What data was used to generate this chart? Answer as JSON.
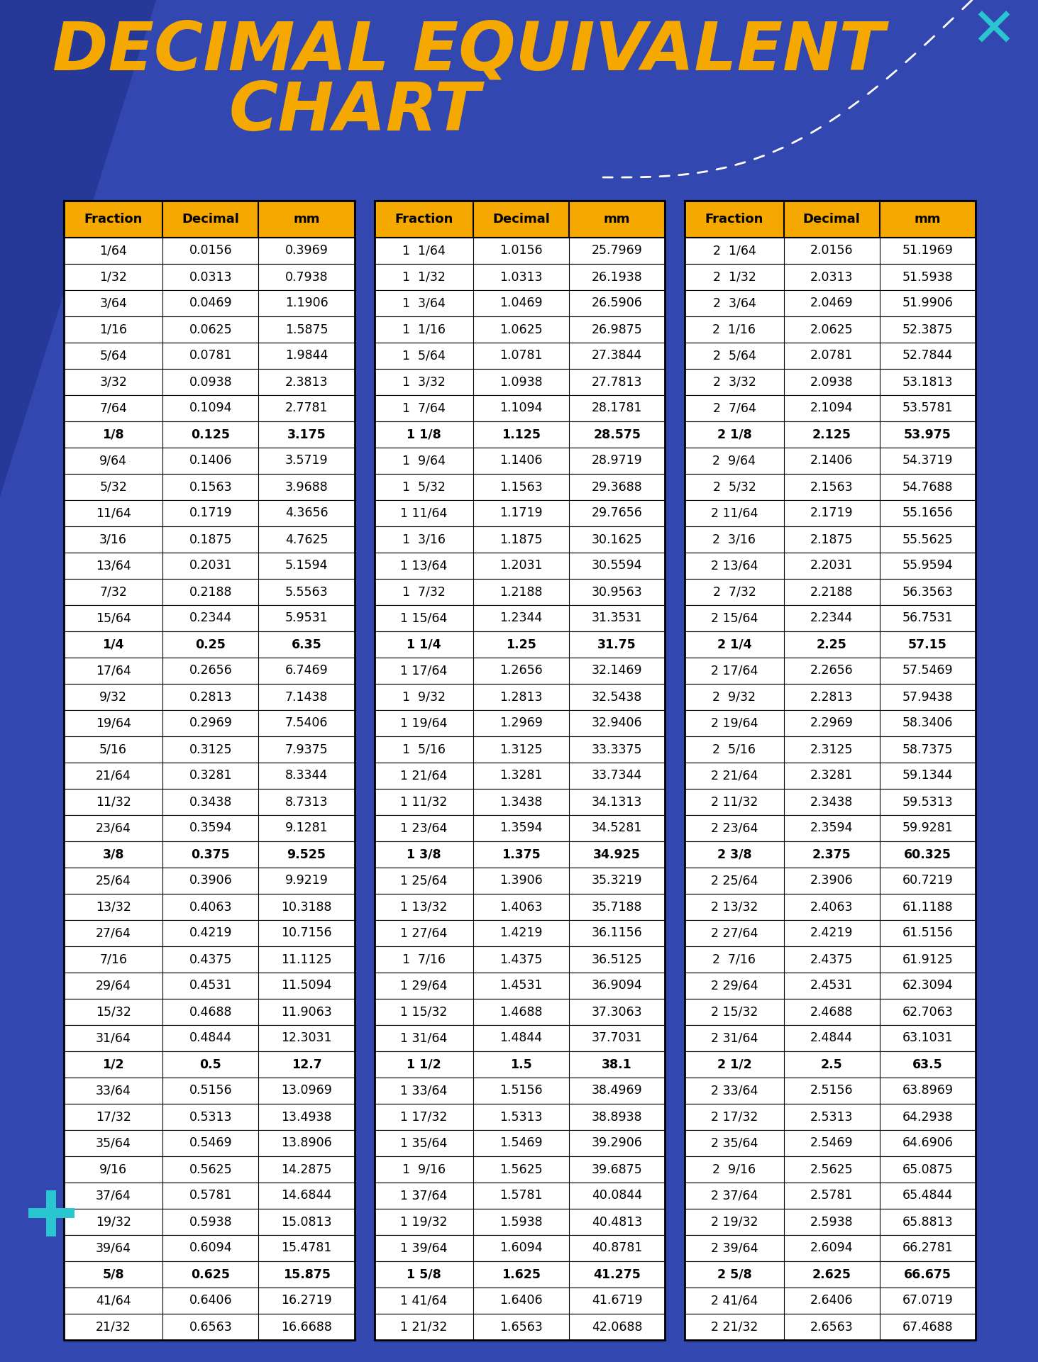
{
  "title_line1": "DECIMAL EQUIVALENT",
  "title_line2": "CHART",
  "bg_color": "#3347B0",
  "header_bg": "#F5A800",
  "header_text_color": "#000000",
  "title_color": "#F5A800",
  "cell_text_color": "#000000",
  "col_headers": [
    "Fraction",
    "Decimal",
    "mm"
  ],
  "rows": [
    [
      "1/64",
      "0.0156",
      "0.3969",
      "1  1/64",
      "1.0156",
      "25.7969",
      "2  1/64",
      "2.0156",
      "51.1969"
    ],
    [
      "1/32",
      "0.0313",
      "0.7938",
      "1  1/32",
      "1.0313",
      "26.1938",
      "2  1/32",
      "2.0313",
      "51.5938"
    ],
    [
      "3/64",
      "0.0469",
      "1.1906",
      "1  3/64",
      "1.0469",
      "26.5906",
      "2  3/64",
      "2.0469",
      "51.9906"
    ],
    [
      "1/16",
      "0.0625",
      "1.5875",
      "1  1/16",
      "1.0625",
      "26.9875",
      "2  1/16",
      "2.0625",
      "52.3875"
    ],
    [
      "5/64",
      "0.0781",
      "1.9844",
      "1  5/64",
      "1.0781",
      "27.3844",
      "2  5/64",
      "2.0781",
      "52.7844"
    ],
    [
      "3/32",
      "0.0938",
      "2.3813",
      "1  3/32",
      "1.0938",
      "27.7813",
      "2  3/32",
      "2.0938",
      "53.1813"
    ],
    [
      "7/64",
      "0.1094",
      "2.7781",
      "1  7/64",
      "1.1094",
      "28.1781",
      "2  7/64",
      "2.1094",
      "53.5781"
    ],
    [
      "1/8",
      "0.125",
      "3.175",
      "1 1/8",
      "1.125",
      "28.575",
      "2 1/8",
      "2.125",
      "53.975"
    ],
    [
      "9/64",
      "0.1406",
      "3.5719",
      "1  9/64",
      "1.1406",
      "28.9719",
      "2  9/64",
      "2.1406",
      "54.3719"
    ],
    [
      "5/32",
      "0.1563",
      "3.9688",
      "1  5/32",
      "1.1563",
      "29.3688",
      "2  5/32",
      "2.1563",
      "54.7688"
    ],
    [
      "11/64",
      "0.1719",
      "4.3656",
      "1 11/64",
      "1.1719",
      "29.7656",
      "2 11/64",
      "2.1719",
      "55.1656"
    ],
    [
      "3/16",
      "0.1875",
      "4.7625",
      "1  3/16",
      "1.1875",
      "30.1625",
      "2  3/16",
      "2.1875",
      "55.5625"
    ],
    [
      "13/64",
      "0.2031",
      "5.1594",
      "1 13/64",
      "1.2031",
      "30.5594",
      "2 13/64",
      "2.2031",
      "55.9594"
    ],
    [
      "7/32",
      "0.2188",
      "5.5563",
      "1  7/32",
      "1.2188",
      "30.9563",
      "2  7/32",
      "2.2188",
      "56.3563"
    ],
    [
      "15/64",
      "0.2344",
      "5.9531",
      "1 15/64",
      "1.2344",
      "31.3531",
      "2 15/64",
      "2.2344",
      "56.7531"
    ],
    [
      "1/4",
      "0.25",
      "6.35",
      "1 1/4",
      "1.25",
      "31.75",
      "2 1/4",
      "2.25",
      "57.15"
    ],
    [
      "17/64",
      "0.2656",
      "6.7469",
      "1 17/64",
      "1.2656",
      "32.1469",
      "2 17/64",
      "2.2656",
      "57.5469"
    ],
    [
      "9/32",
      "0.2813",
      "7.1438",
      "1  9/32",
      "1.2813",
      "32.5438",
      "2  9/32",
      "2.2813",
      "57.9438"
    ],
    [
      "19/64",
      "0.2969",
      "7.5406",
      "1 19/64",
      "1.2969",
      "32.9406",
      "2 19/64",
      "2.2969",
      "58.3406"
    ],
    [
      "5/16",
      "0.3125",
      "7.9375",
      "1  5/16",
      "1.3125",
      "33.3375",
      "2  5/16",
      "2.3125",
      "58.7375"
    ],
    [
      "21/64",
      "0.3281",
      "8.3344",
      "1 21/64",
      "1.3281",
      "33.7344",
      "2 21/64",
      "2.3281",
      "59.1344"
    ],
    [
      "11/32",
      "0.3438",
      "8.7313",
      "1 11/32",
      "1.3438",
      "34.1313",
      "2 11/32",
      "2.3438",
      "59.5313"
    ],
    [
      "23/64",
      "0.3594",
      "9.1281",
      "1 23/64",
      "1.3594",
      "34.5281",
      "2 23/64",
      "2.3594",
      "59.9281"
    ],
    [
      "3/8",
      "0.375",
      "9.525",
      "1 3/8",
      "1.375",
      "34.925",
      "2 3/8",
      "2.375",
      "60.325"
    ],
    [
      "25/64",
      "0.3906",
      "9.9219",
      "1 25/64",
      "1.3906",
      "35.3219",
      "2 25/64",
      "2.3906",
      "60.7219"
    ],
    [
      "13/32",
      "0.4063",
      "10.3188",
      "1 13/32",
      "1.4063",
      "35.7188",
      "2 13/32",
      "2.4063",
      "61.1188"
    ],
    [
      "27/64",
      "0.4219",
      "10.7156",
      "1 27/64",
      "1.4219",
      "36.1156",
      "2 27/64",
      "2.4219",
      "61.5156"
    ],
    [
      "7/16",
      "0.4375",
      "11.1125",
      "1  7/16",
      "1.4375",
      "36.5125",
      "2  7/16",
      "2.4375",
      "61.9125"
    ],
    [
      "29/64",
      "0.4531",
      "11.5094",
      "1 29/64",
      "1.4531",
      "36.9094",
      "2 29/64",
      "2.4531",
      "62.3094"
    ],
    [
      "15/32",
      "0.4688",
      "11.9063",
      "1 15/32",
      "1.4688",
      "37.3063",
      "2 15/32",
      "2.4688",
      "62.7063"
    ],
    [
      "31/64",
      "0.4844",
      "12.3031",
      "1 31/64",
      "1.4844",
      "37.7031",
      "2 31/64",
      "2.4844",
      "63.1031"
    ],
    [
      "1/2",
      "0.5",
      "12.7",
      "1 1/2",
      "1.5",
      "38.1",
      "2 1/2",
      "2.5",
      "63.5"
    ],
    [
      "33/64",
      "0.5156",
      "13.0969",
      "1 33/64",
      "1.5156",
      "38.4969",
      "2 33/64",
      "2.5156",
      "63.8969"
    ],
    [
      "17/32",
      "0.5313",
      "13.4938",
      "1 17/32",
      "1.5313",
      "38.8938",
      "2 17/32",
      "2.5313",
      "64.2938"
    ],
    [
      "35/64",
      "0.5469",
      "13.8906",
      "1 35/64",
      "1.5469",
      "39.2906",
      "2 35/64",
      "2.5469",
      "64.6906"
    ],
    [
      "9/16",
      "0.5625",
      "14.2875",
      "1  9/16",
      "1.5625",
      "39.6875",
      "2  9/16",
      "2.5625",
      "65.0875"
    ],
    [
      "37/64",
      "0.5781",
      "14.6844",
      "1 37/64",
      "1.5781",
      "40.0844",
      "2 37/64",
      "2.5781",
      "65.4844"
    ],
    [
      "19/32",
      "0.5938",
      "15.0813",
      "1 19/32",
      "1.5938",
      "40.4813",
      "2 19/32",
      "2.5938",
      "65.8813"
    ],
    [
      "39/64",
      "0.6094",
      "15.4781",
      "1 39/64",
      "1.6094",
      "40.8781",
      "2 39/64",
      "2.6094",
      "66.2781"
    ],
    [
      "5/8",
      "0.625",
      "15.875",
      "1 5/8",
      "1.625",
      "41.275",
      "2 5/8",
      "2.625",
      "66.675"
    ],
    [
      "41/64",
      "0.6406",
      "16.2719",
      "1 41/64",
      "1.6406",
      "41.6719",
      "2 41/64",
      "2.6406",
      "67.0719"
    ],
    [
      "21/32",
      "0.6563",
      "16.6688",
      "1 21/32",
      "1.6563",
      "42.0688",
      "2 21/32",
      "2.6563",
      "67.4688"
    ]
  ],
  "bold_rows": [
    7,
    15,
    23,
    31,
    39
  ],
  "accent_color": "#29C5D0",
  "left_panel_color": "#263898",
  "white_color": "#FFFFFF",
  "cell_border_color": "#000000",
  "gap_color": "#3347B0"
}
